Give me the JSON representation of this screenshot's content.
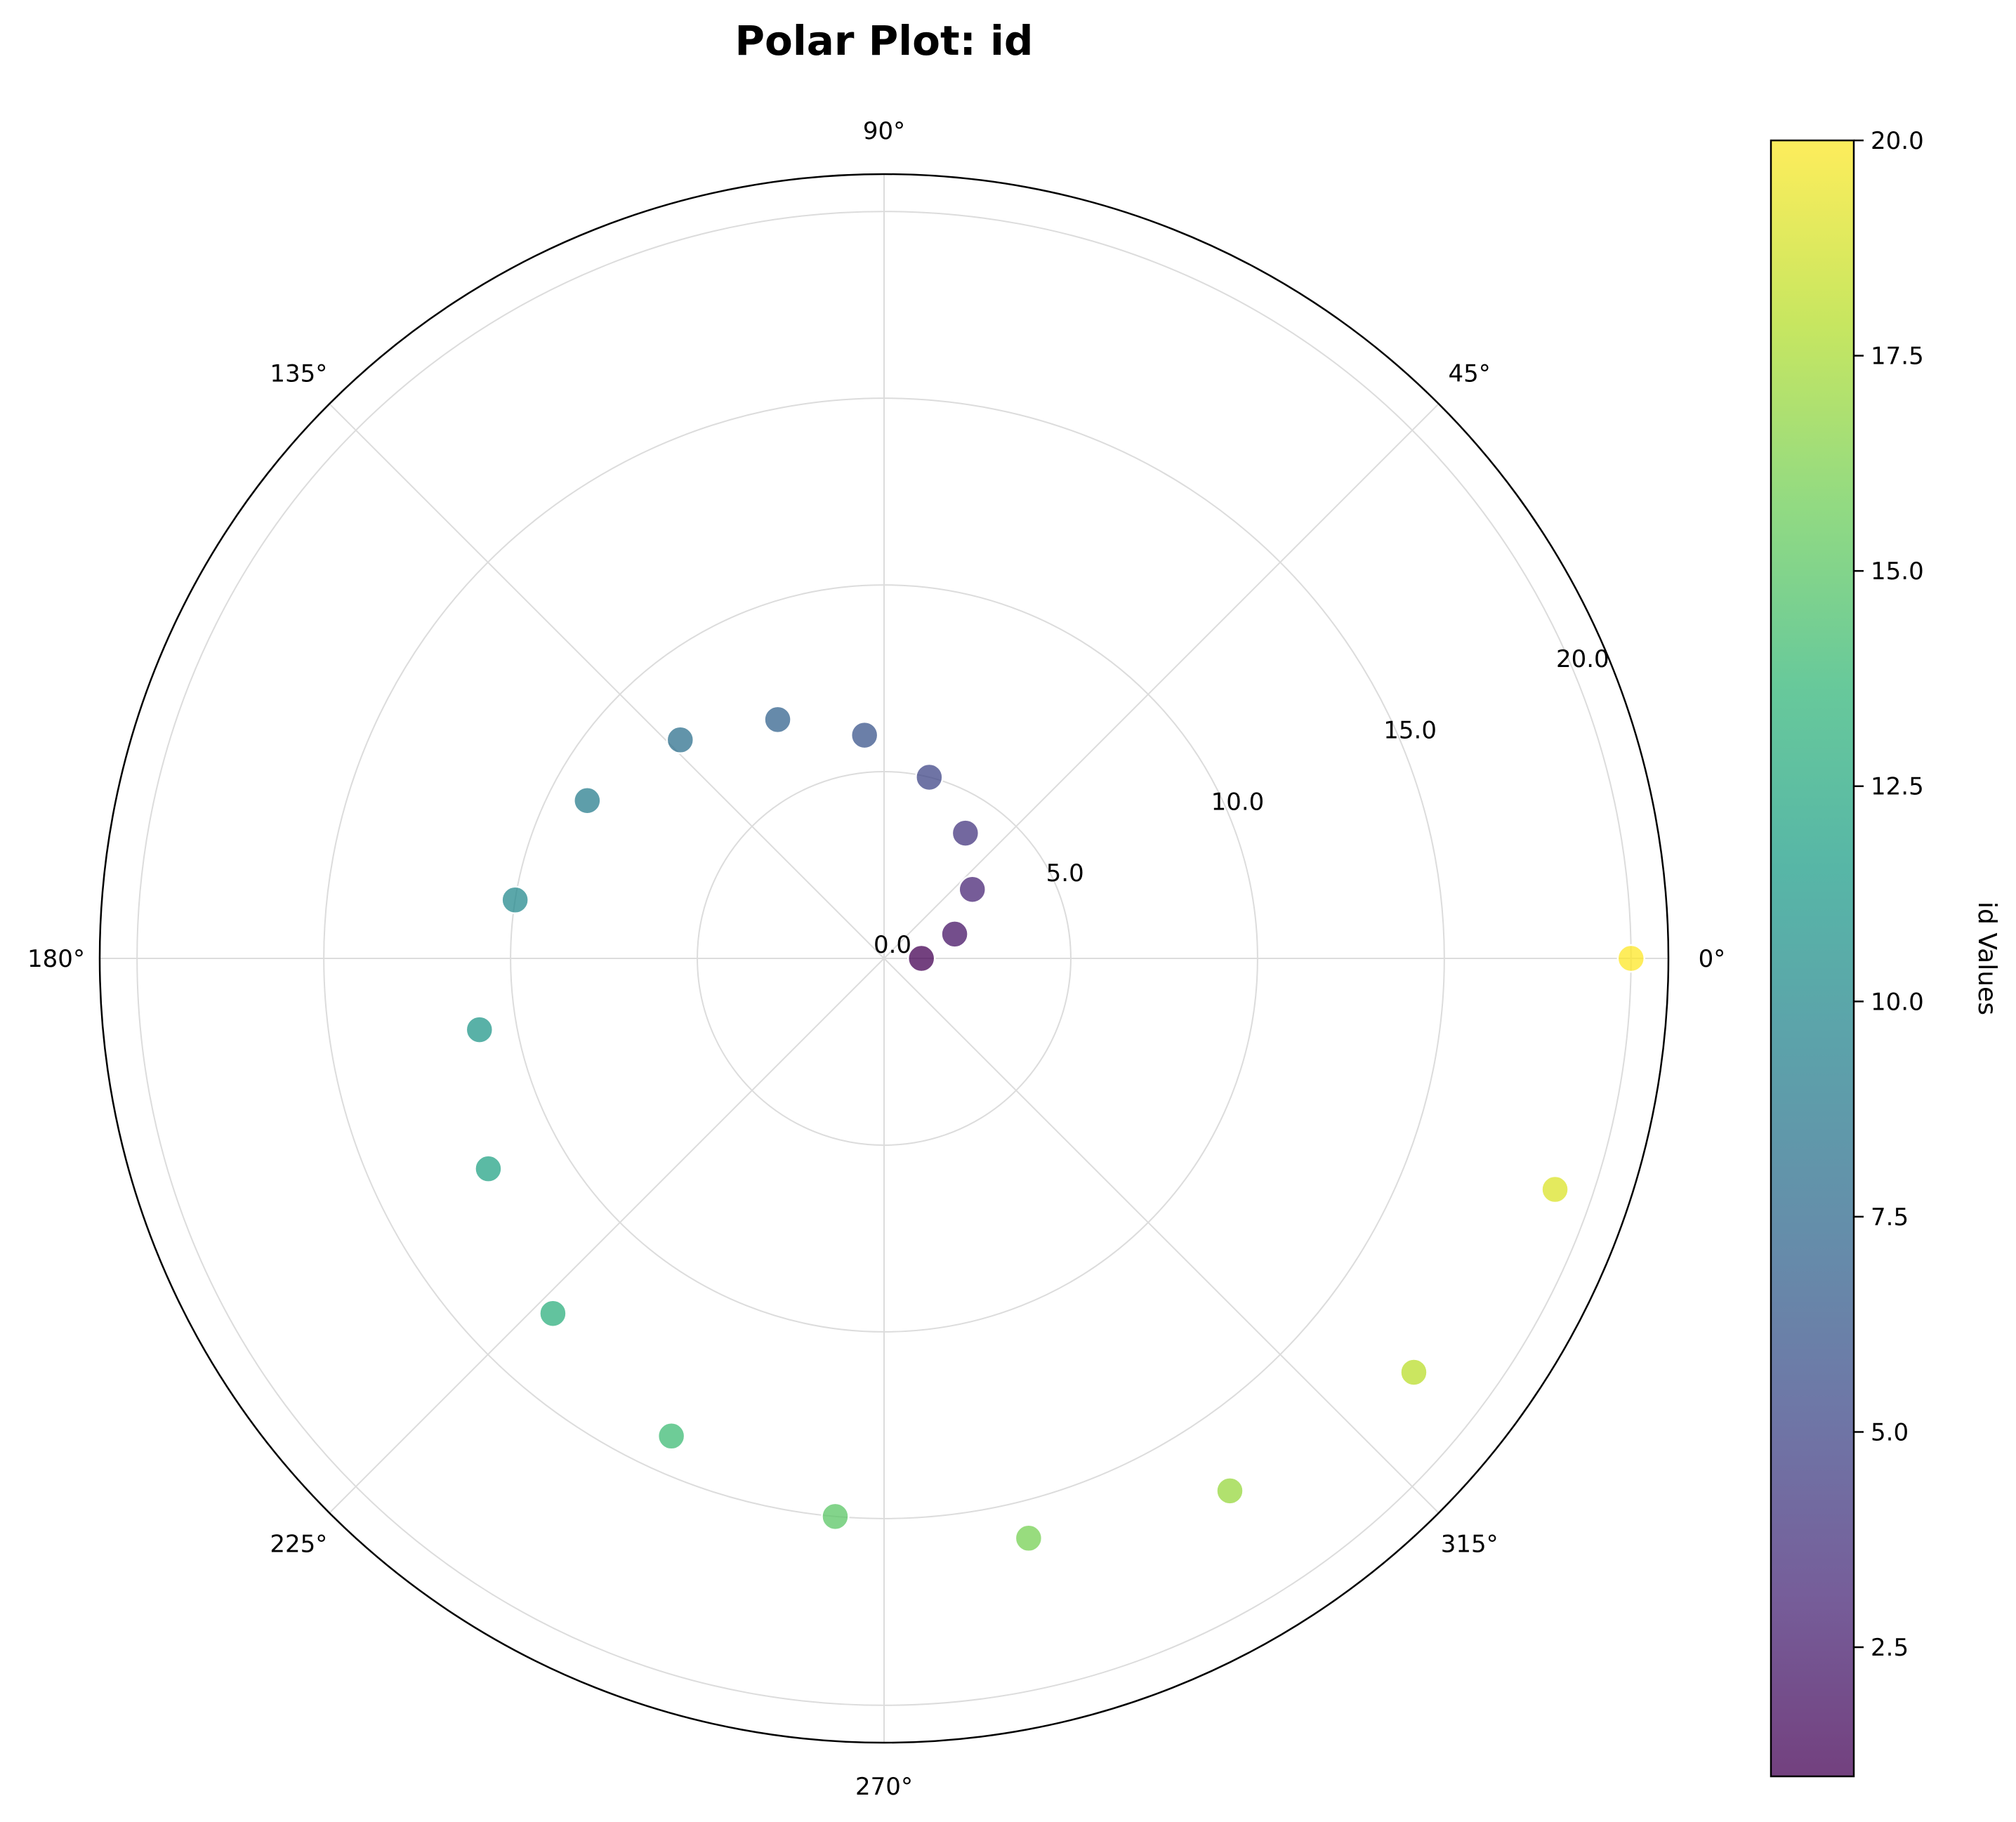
{
  "chart_data": {
    "type": "scatter",
    "coordinate_system": "polar",
    "title": "Polar Plot: id",
    "angle_ticks": [
      "0°",
      "45°",
      "90°",
      "135°",
      "180°",
      "225°",
      "270°",
      "315°"
    ],
    "radial_ticks": [
      "0.0",
      "5.0",
      "10.0",
      "15.0",
      "20.0"
    ],
    "rlim": [
      0,
      21
    ],
    "grid": true,
    "colormap": "viridis",
    "colorbar": {
      "label": "id Values",
      "range": [
        1,
        20
      ],
      "ticks": [
        "2.5",
        "5.0",
        "7.5",
        "10.0",
        "12.5",
        "15.0",
        "17.5",
        "20.0"
      ],
      "tick_values": [
        2.5,
        5,
        7.5,
        10,
        12.5,
        15,
        17.5,
        20
      ]
    },
    "points": [
      {
        "id": 1,
        "theta_deg": 0,
        "r": 1.0
      },
      {
        "id": 2,
        "theta_deg": 19,
        "r": 2.0
      },
      {
        "id": 3,
        "theta_deg": 38,
        "r": 3.0
      },
      {
        "id": 4,
        "theta_deg": 57,
        "r": 4.0
      },
      {
        "id": 5,
        "theta_deg": 76,
        "r": 5.0
      },
      {
        "id": 6,
        "theta_deg": 95,
        "r": 6.0
      },
      {
        "id": 7,
        "theta_deg": 114,
        "r": 7.0
      },
      {
        "id": 8,
        "theta_deg": 133,
        "r": 8.0
      },
      {
        "id": 9,
        "theta_deg": 152,
        "r": 9.0
      },
      {
        "id": 10,
        "theta_deg": 171,
        "r": 10.0
      },
      {
        "id": 11,
        "theta_deg": 190,
        "r": 11.0
      },
      {
        "id": 12,
        "theta_deg": 208,
        "r": 12.0
      },
      {
        "id": 13,
        "theta_deg": 227,
        "r": 13.0
      },
      {
        "id": 14,
        "theta_deg": 246,
        "r": 14.0
      },
      {
        "id": 15,
        "theta_deg": 265,
        "r": 15.0
      },
      {
        "id": 16,
        "theta_deg": 284,
        "r": 16.0
      },
      {
        "id": 17,
        "theta_deg": 303,
        "r": 17.0
      },
      {
        "id": 18,
        "theta_deg": 322,
        "r": 18.0
      },
      {
        "id": 19,
        "theta_deg": 341,
        "r": 19.0
      },
      {
        "id": 20,
        "theta_deg": 360,
        "r": 20.0
      }
    ]
  },
  "colors": {
    "grid": "#dcdcdc",
    "axis": "#000000",
    "marker_edge": "#ffffff",
    "viridis": [
      "#440154",
      "#482878",
      "#3e4989",
      "#31688e",
      "#26828e",
      "#1f9e89",
      "#35b779",
      "#6ece58",
      "#b5de2b",
      "#fde725"
    ]
  }
}
